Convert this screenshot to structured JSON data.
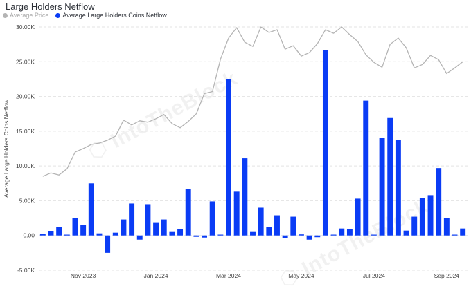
{
  "header": {
    "title": "Large Holders Netflow"
  },
  "legend": [
    {
      "label": "Average Price",
      "color": "#b4b4b4"
    },
    {
      "label": "Average Large Holders Coins Netflow",
      "color": "#0a3cf5"
    }
  ],
  "watermark": "IntoTheBlock",
  "chart_data": {
    "type": "bar",
    "title": "Large Holders Netflow",
    "ylabel": "Average Large Holders Coins Netflow",
    "xlabel": "",
    "ylim": [
      -5000,
      30000
    ],
    "y_ticks": [
      "-5.00K",
      "0.00",
      "5.00K",
      "10.00K",
      "15.00K",
      "20.00K",
      "25.00K",
      "30.00K"
    ],
    "y_tick_values": [
      -5000,
      0,
      5000,
      10000,
      15000,
      20000,
      25000,
      30000
    ],
    "x_ticks": [
      "Nov 2023",
      "Jan 2024",
      "Mar 2024",
      "May 2024",
      "Jul 2024",
      "Sep 2024"
    ],
    "x_tick_index": [
      5,
      14,
      23,
      32,
      41,
      50
    ],
    "grid": true,
    "legend_position": "top-left",
    "series": [
      {
        "name": "Average Large Holders Coins Netflow",
        "type": "bar",
        "color": "#0a3cf5",
        "values": [
          250,
          600,
          1200,
          50,
          2500,
          1500,
          7500,
          300,
          -2500,
          400,
          2300,
          4600,
          -600,
          4500,
          1900,
          2300,
          500,
          900,
          6700,
          -200,
          -300,
          4900,
          100,
          22500,
          6300,
          11100,
          500,
          4000,
          1200,
          2900,
          -400,
          2700,
          150,
          -600,
          -250,
          26700,
          100,
          1000,
          900,
          5300,
          19400,
          100,
          14000,
          16900,
          13700,
          700,
          2700,
          5400,
          5800,
          9700,
          2500,
          100,
          1000
        ]
      },
      {
        "name": "Average Price",
        "type": "line",
        "color": "#b4b4b4",
        "values": [
          8500,
          9000,
          8700,
          9600,
          12000,
          12500,
          13100,
          13300,
          13700,
          14300,
          16600,
          15900,
          16500,
          16300,
          16800,
          17400,
          16100,
          15500,
          16400,
          17500,
          20400,
          20700,
          25400,
          28400,
          29900,
          27800,
          27200,
          30000,
          29200,
          29600,
          26800,
          27300,
          25800,
          26300,
          27600,
          29600,
          29100,
          30000,
          28900,
          27900,
          26000,
          24900,
          24200,
          27500,
          28400,
          27000,
          24100,
          24600,
          25900,
          25300,
          23300,
          24100,
          25000
        ]
      }
    ]
  }
}
